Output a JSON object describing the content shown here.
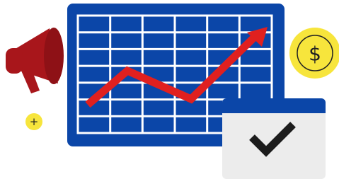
{
  "icons": {
    "dollar": "$",
    "plus": "+"
  }
}
